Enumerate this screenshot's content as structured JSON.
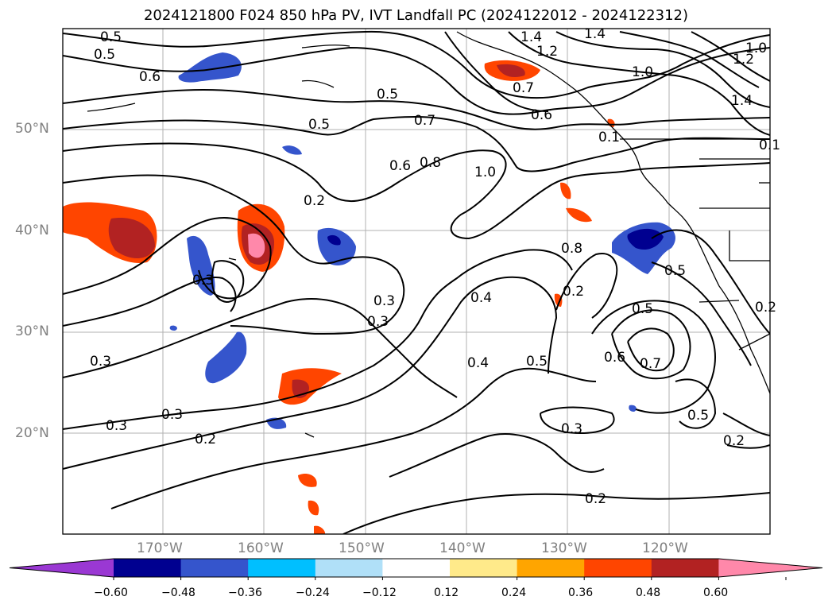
{
  "title": "2024121800 F024 850 hPa PV, IVT Landfall PC (2024122012 - 2024122312)",
  "lat_labels": [
    "50°N",
    "40°N",
    "30°N",
    "20°N"
  ],
  "lon_labels": [
    "170°W",
    "160°W",
    "150°W",
    "140°W",
    "130°W",
    "120°W"
  ],
  "colorbar": {
    "ticks": [
      "−0.60",
      "−0.48",
      "−0.36",
      "−0.24",
      "−0.12",
      "0.12",
      "0.24",
      "0.36",
      "0.48",
      "0.60"
    ],
    "colors": [
      "#9a38d3",
      "#000090",
      "#3555cc",
      "#00bfff",
      "#b0e0f8",
      "#ffffff",
      "#ffea8a",
      "#ffa500",
      "#ff4500",
      "#b22222",
      "#ff88aa"
    ]
  },
  "contour_labels": [
    "0.5",
    "0.5",
    "0.6",
    "0.5",
    "0.5",
    "0.7",
    "0.6",
    "0.8",
    "1.0",
    "0.2",
    "0.3",
    "0.4",
    "0.3",
    "0.3",
    "0.3",
    "0.2",
    "0.3",
    "0.2",
    "0.4",
    "0.5",
    "0.2",
    "0.3",
    "0.5",
    "0.6",
    "0.7",
    "0.5",
    "0.5",
    "0.2",
    "0.2",
    "1.4",
    "1.2",
    "1.4",
    "1.2",
    "1.0",
    "1.0",
    "1.4",
    "0.7",
    "0.6",
    "0.1",
    "0.1",
    "0.8",
    "0.3"
  ]
}
